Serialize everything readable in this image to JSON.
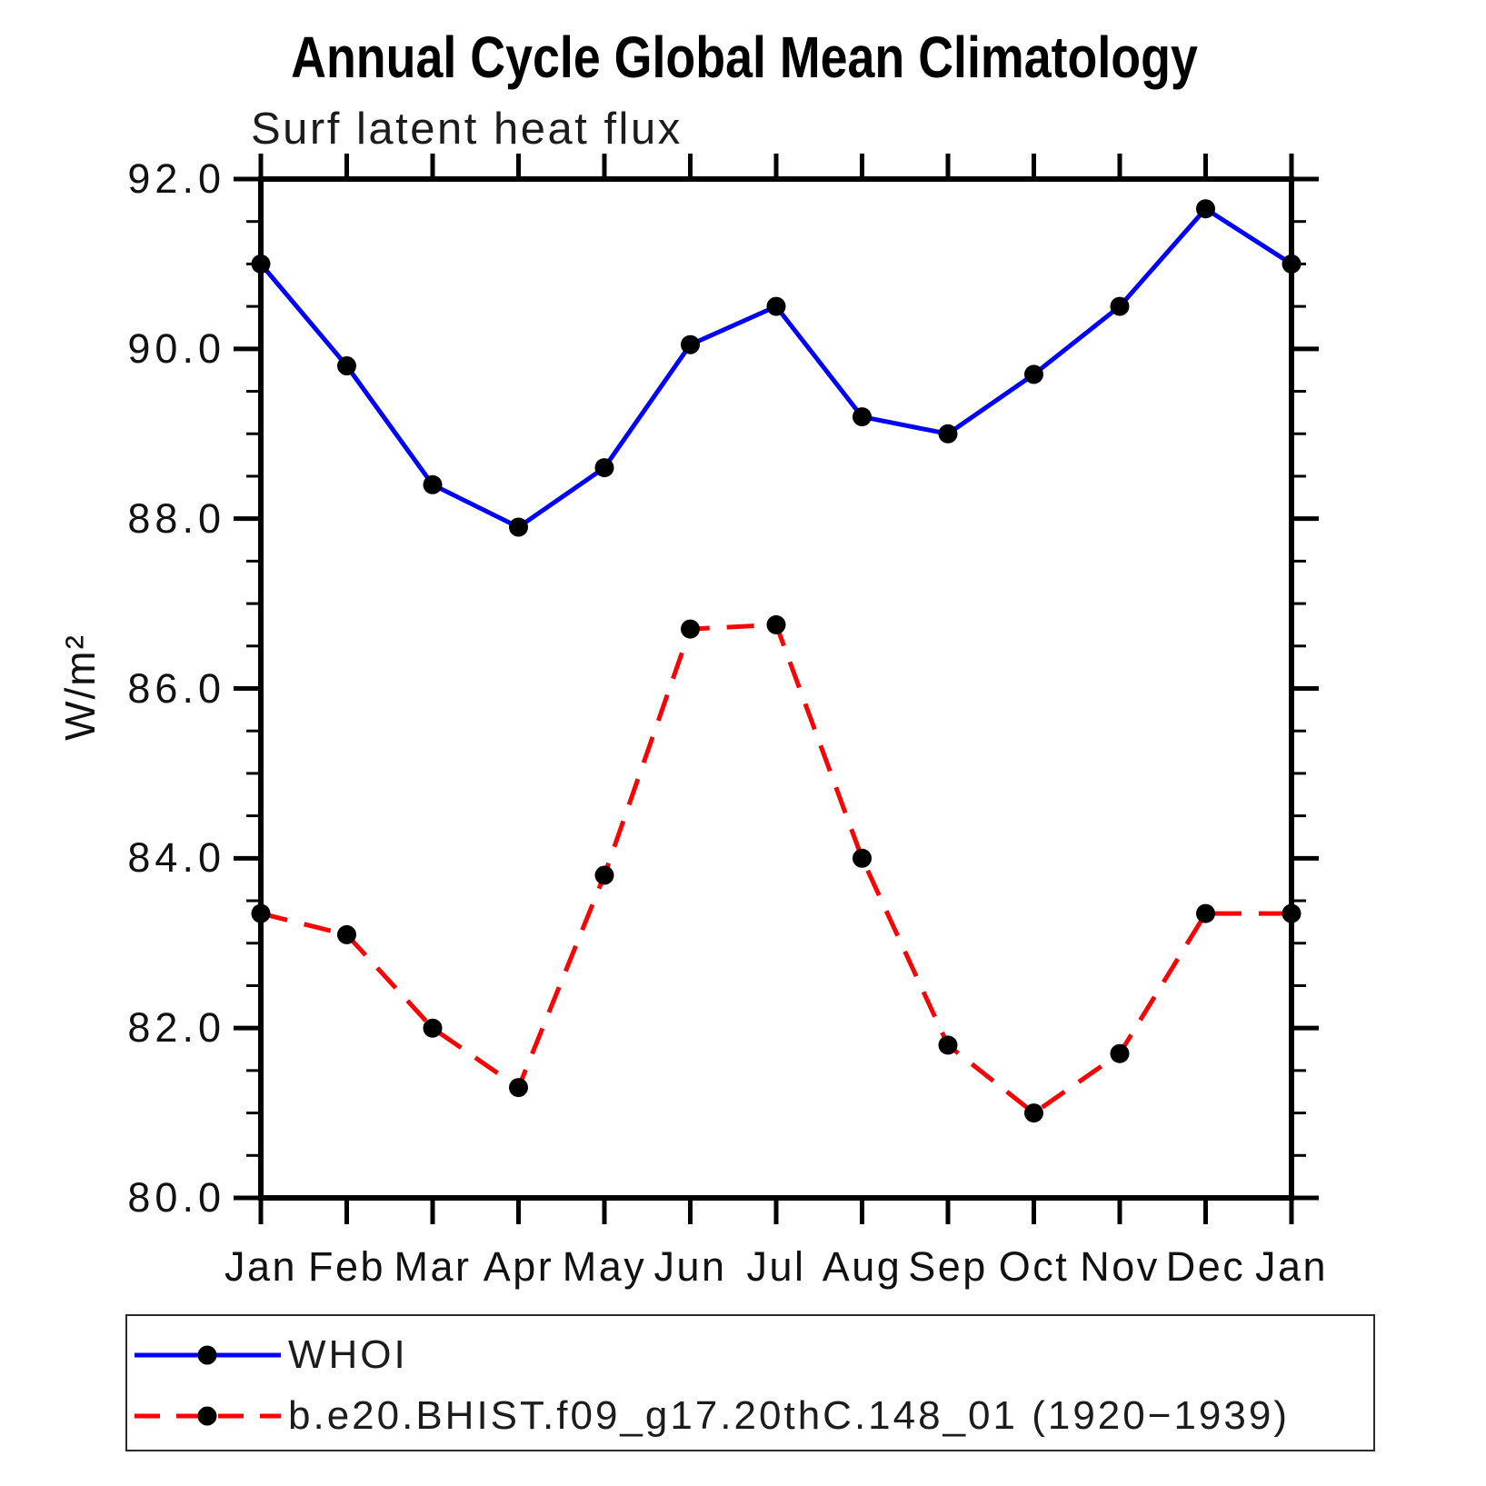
{
  "chart_data": {
    "type": "line",
    "title": "Annual Cycle Global Mean Climatology",
    "subtitle": "Surf latent heat flux",
    "ylabel": "W/m²",
    "xlabel": "",
    "categories": [
      "Jan",
      "Feb",
      "Mar",
      "Apr",
      "May",
      "Jun",
      "Jul",
      "Aug",
      "Sep",
      "Oct",
      "Nov",
      "Dec",
      "Jan"
    ],
    "series": [
      {
        "name": "WHOI",
        "color": "#0000ff",
        "line_style": "solid",
        "marker": "filled-circle",
        "marker_color": "#000000",
        "values": [
          91.0,
          89.8,
          88.4,
          87.9,
          88.6,
          90.05,
          90.5,
          89.2,
          89.0,
          89.7,
          90.5,
          91.65,
          91.0
        ]
      },
      {
        "name": "b.e20.BHIST.f09_g17.20thC.148_01 (1920−1939)",
        "color": "#ff0000",
        "line_style": "dashed",
        "marker": "filled-circle",
        "marker_color": "#000000",
        "values": [
          83.35,
          83.1,
          82.0,
          81.3,
          83.8,
          86.7,
          86.75,
          84.0,
          81.8,
          81.0,
          81.7,
          83.35,
          83.35
        ]
      }
    ],
    "ylim": [
      80.0,
      92.0
    ],
    "ytick_major_step": 2.0,
    "ytick_minor_step": 0.5,
    "ytick_values": [
      92,
      90,
      88,
      86,
      84,
      82,
      80
    ],
    "ytick_labels": [
      "92.0",
      "90.0",
      "88.0",
      "86.0",
      "84.0",
      "82.0",
      "80.0"
    ],
    "grid": false,
    "axis_color": "#000000",
    "background_color": "#ffffff",
    "legend_position": "bottom-left"
  }
}
